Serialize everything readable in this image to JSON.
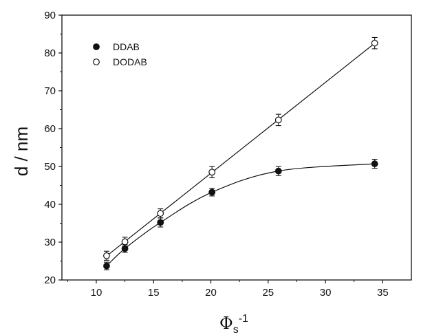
{
  "chart_data": {
    "type": "scatter",
    "xlabel": "Φs-1",
    "xlabel_main": "Φ",
    "xlabel_sub": "s",
    "xlabel_sup": "-1",
    "ylabel": "d / nm",
    "xlim": [
      7,
      37.5
    ],
    "ylim": [
      20,
      90
    ],
    "x_ticks": [
      10,
      15,
      20,
      25,
      30,
      35
    ],
    "y_ticks": [
      20,
      30,
      40,
      50,
      60,
      70,
      80,
      90
    ],
    "grid": false,
    "legend": "top-left",
    "series": [
      {
        "name": "DDAB",
        "marker": "filled-circle",
        "x": [
          10.9,
          12.5,
          15.6,
          20.1,
          25.9,
          34.3
        ],
        "y": [
          23.7,
          28.3,
          35.2,
          43.2,
          48.8,
          50.7
        ],
        "err": [
          1.0,
          1.0,
          1.2,
          1.0,
          1.2,
          1.2
        ],
        "fit": "curve"
      },
      {
        "name": "DODAB",
        "marker": "open-circle",
        "x": [
          10.9,
          12.5,
          15.6,
          20.1,
          25.9,
          34.3
        ],
        "y": [
          26.4,
          30.1,
          37.6,
          48.5,
          62.3,
          82.6
        ],
        "err": [
          1.2,
          1.2,
          1.2,
          1.5,
          1.5,
          1.5
        ],
        "fit": "line"
      }
    ]
  },
  "colors": {
    "ink": "#111111",
    "background": "#ffffff"
  }
}
